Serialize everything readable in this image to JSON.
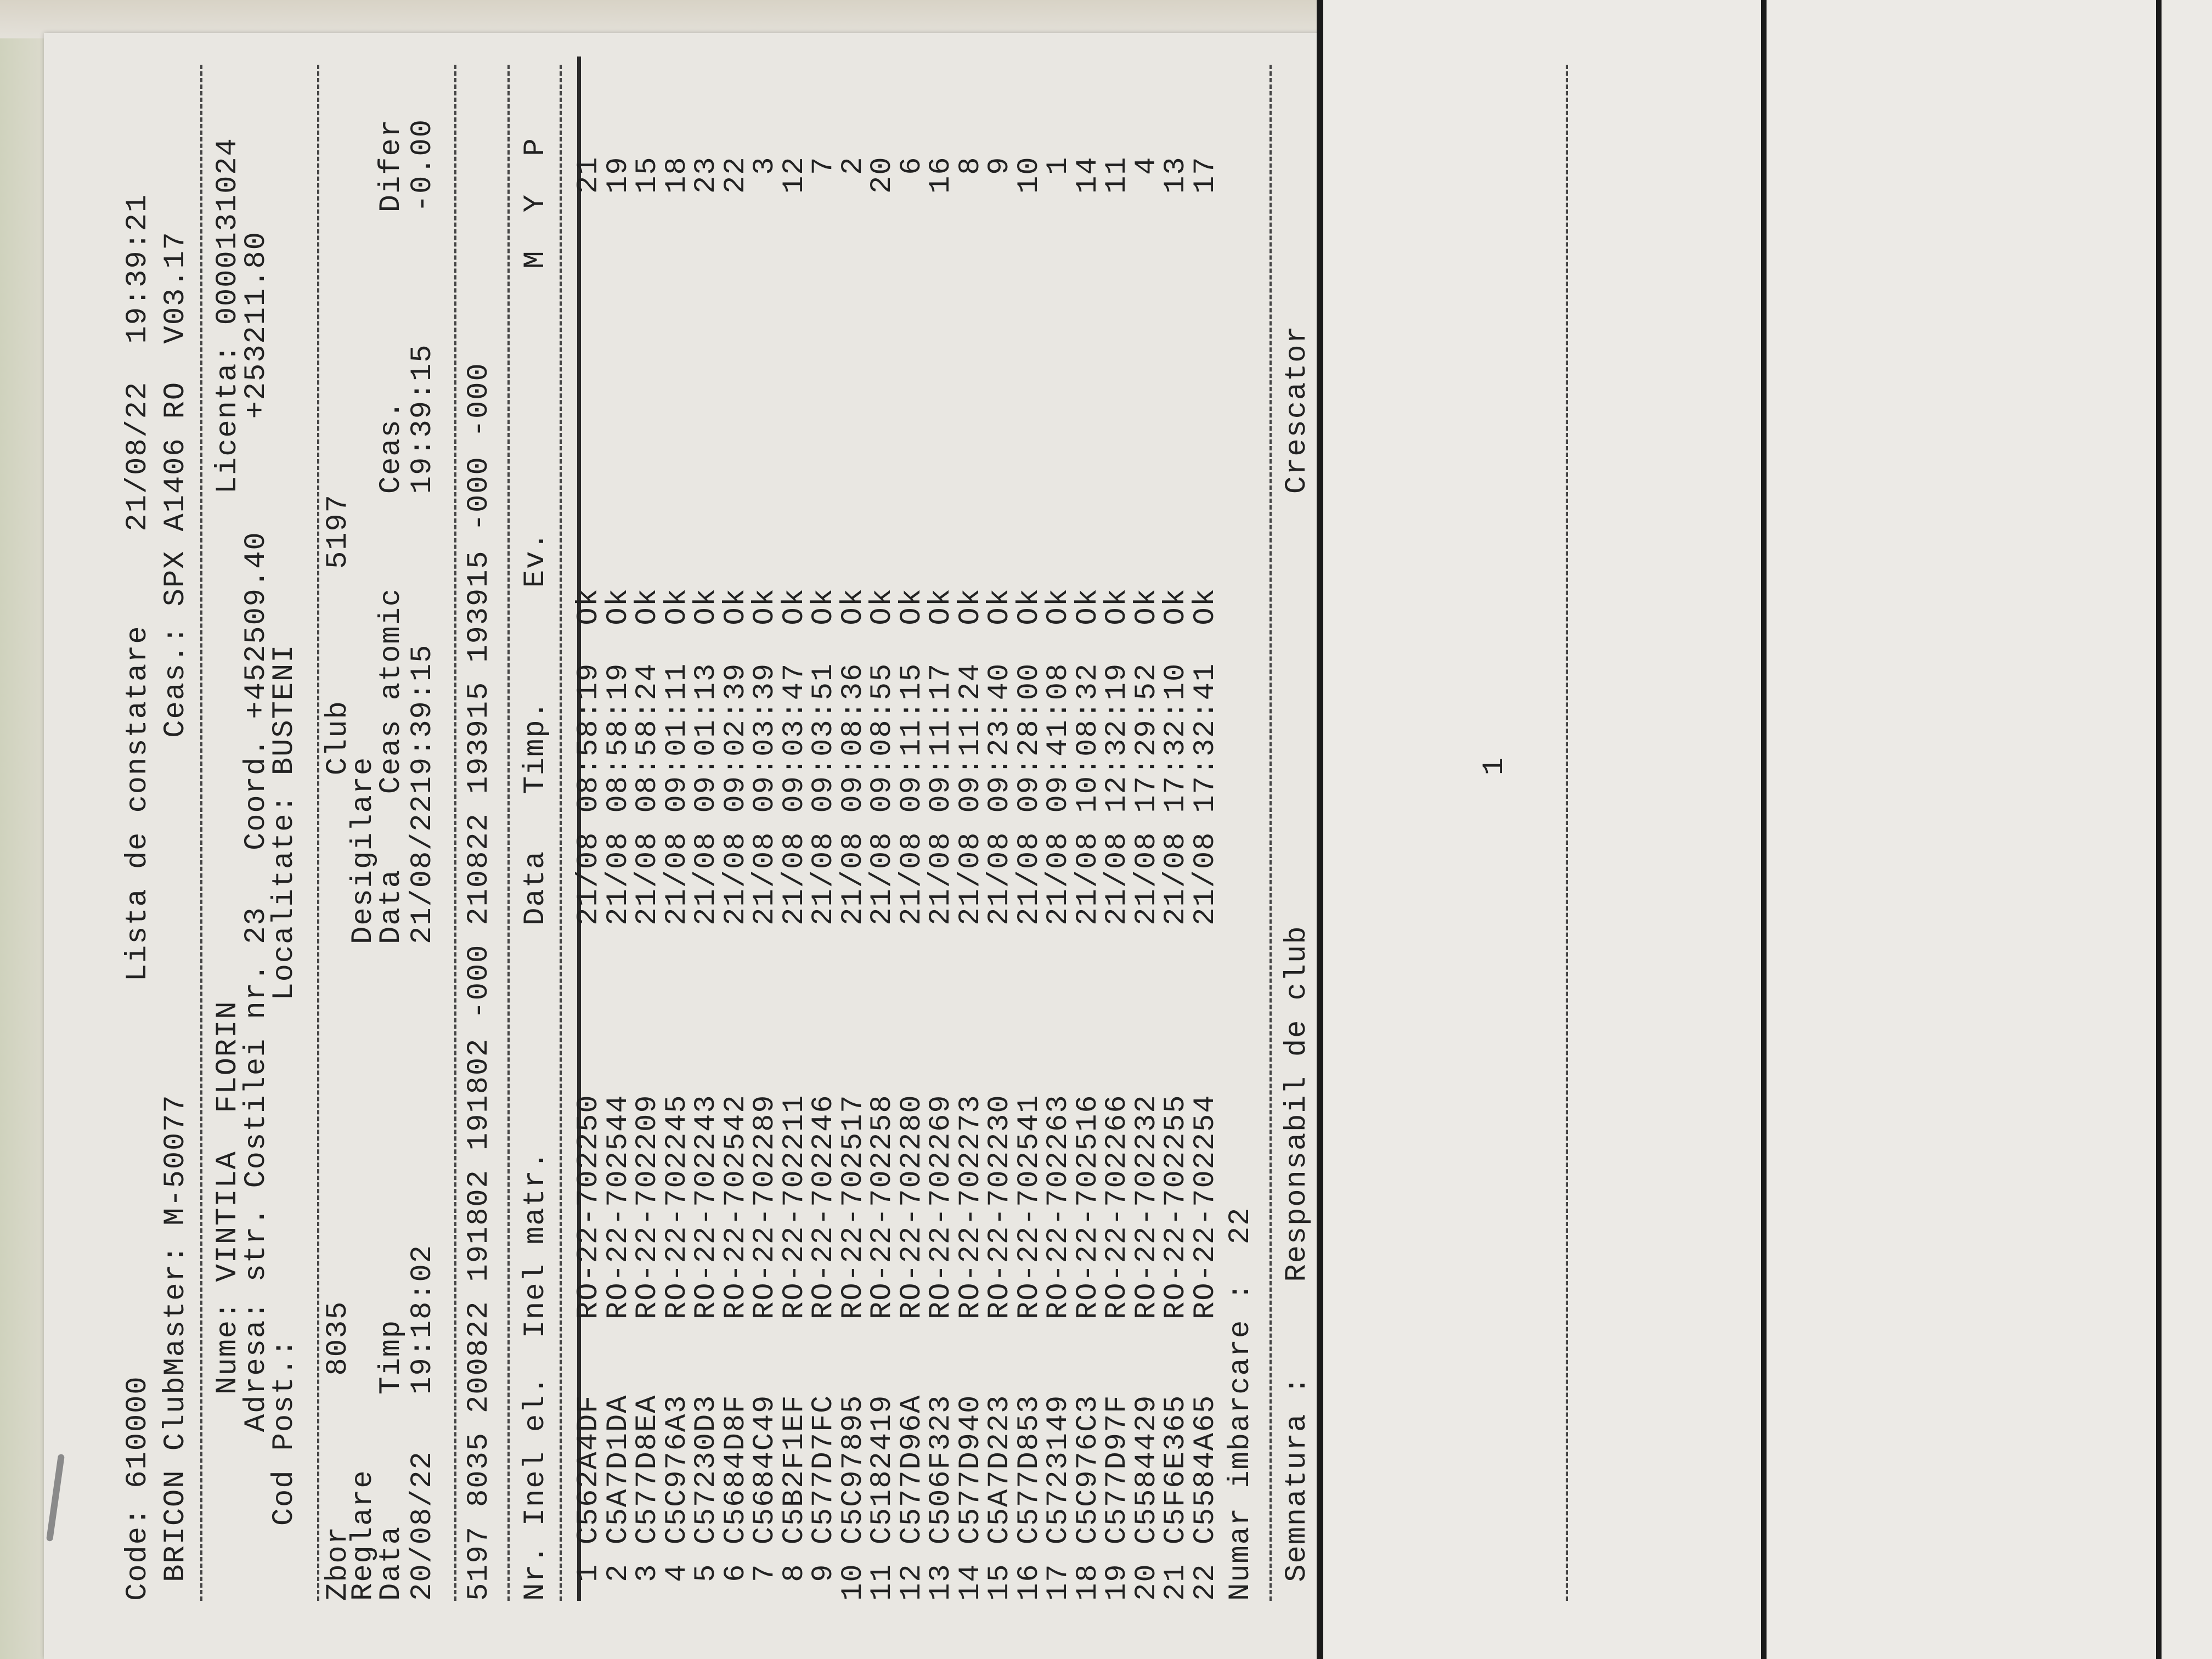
{
  "header": {
    "code": "Code: 610000",
    "title": "Lista de constatare",
    "datetime": "21/08/22  19:39:21",
    "club_master": "BRICON ClubMaster: M-50077",
    "ceas": "Ceas.: SPX A1406 RO  V03.17"
  },
  "owner": {
    "nume": "Nume: VINTILA  FLORIN",
    "licenta": "Licenta: 0000131024",
    "adresa": "Adresa: str. Costilei nr. 23",
    "coord": "Coord. +452509.40",
    "coord2": "+253211.80",
    "cod_post": "Cod Post.:",
    "localitate": "Localitate: BUSTENI"
  },
  "flight": {
    "zbor_label": "Zbor",
    "zbor": "8035",
    "club_label": "Club",
    "club": "5197",
    "reglare": "Reglare",
    "desigilare": "Desigilare",
    "h_data1": "Data",
    "h_timp": "Timp",
    "h_data2": "Data",
    "h_ceas_atomic": "Ceas atomic",
    "h_ceas": "Ceas.",
    "h_difer": "Difer",
    "v_data1": "20/08/22",
    "v_timp": "19:18:02",
    "v_data2": "21/08/22",
    "v_ceas_atomic": "19:39:15",
    "v_ceas": "19:39:15",
    "v_difer": "-0.00",
    "summary": "5197 8035 200822 191802 191802 -000 210822 193915 193915 -000 -000"
  },
  "table": {
    "h_nr": "Nr.",
    "h_inel": "Inel el.  Inel matr.",
    "h_data": "Data",
    "h_timp": "Timp.",
    "h_ev": "Ev.",
    "h_myp": "M  Y  P",
    "rows": [
      {
        "nr": "1",
        "inel": "C562A4DF",
        "matr": "RO-22-702250",
        "data": "21/08",
        "timp": "08:58:19",
        "ev": "Ok",
        "p": "21"
      },
      {
        "nr": "2",
        "inel": "C5A7D1DA",
        "matr": "RO-22-702544",
        "data": "21/08",
        "timp": "08:58:19",
        "ev": "Ok",
        "p": "19"
      },
      {
        "nr": "3",
        "inel": "C577D8EA",
        "matr": "RO-22-702209",
        "data": "21/08",
        "timp": "08:58:24",
        "ev": "Ok",
        "p": "15"
      },
      {
        "nr": "4",
        "inel": "C5C976A3",
        "matr": "RO-22-702245",
        "data": "21/08",
        "timp": "09:01:11",
        "ev": "Ok",
        "p": "18"
      },
      {
        "nr": "5",
        "inel": "C57230D3",
        "matr": "RO-22-702243",
        "data": "21/08",
        "timp": "09:01:13",
        "ev": "Ok",
        "p": "23"
      },
      {
        "nr": "6",
        "inel": "C5684D8F",
        "matr": "RO-22-702542",
        "data": "21/08",
        "timp": "09:02:39",
        "ev": "Ok",
        "p": "22"
      },
      {
        "nr": "7",
        "inel": "C5684C49",
        "matr": "RO-22-702289",
        "data": "21/08",
        "timp": "09:03:39",
        "ev": "Ok",
        "p": "3"
      },
      {
        "nr": "8",
        "inel": "C5B2F1EF",
        "matr": "RO-22-702211",
        "data": "21/08",
        "timp": "09:03:47",
        "ev": "Ok",
        "p": "12"
      },
      {
        "nr": "9",
        "inel": "C577D7FC",
        "matr": "RO-22-702246",
        "data": "21/08",
        "timp": "09:03:51",
        "ev": "Ok",
        "p": "7"
      },
      {
        "nr": "10",
        "inel": "C5C97895",
        "matr": "RO-22-702517",
        "data": "21/08",
        "timp": "09:08:36",
        "ev": "Ok",
        "p": "2"
      },
      {
        "nr": "11",
        "inel": "C5182419",
        "matr": "RO-22-702258",
        "data": "21/08",
        "timp": "09:08:55",
        "ev": "Ok",
        "p": "20"
      },
      {
        "nr": "12",
        "inel": "C577D96A",
        "matr": "RO-22-702280",
        "data": "21/08",
        "timp": "09:11:15",
        "ev": "Ok",
        "p": "6"
      },
      {
        "nr": "13",
        "inel": "C506F323",
        "matr": "RO-22-702269",
        "data": "21/08",
        "timp": "09:11:17",
        "ev": "Ok",
        "p": "16"
      },
      {
        "nr": "14",
        "inel": "C577D940",
        "matr": "RO-22-702273",
        "data": "21/08",
        "timp": "09:11:24",
        "ev": "Ok",
        "p": "8"
      },
      {
        "nr": "15",
        "inel": "C5A7D223",
        "matr": "RO-22-702230",
        "data": "21/08",
        "timp": "09:23:40",
        "ev": "Ok",
        "p": "9"
      },
      {
        "nr": "16",
        "inel": "C577D853",
        "matr": "RO-22-702541",
        "data": "21/08",
        "timp": "09:28:00",
        "ev": "Ok",
        "p": "10"
      },
      {
        "nr": "17",
        "inel": "C5723149",
        "matr": "RO-22-702263",
        "data": "21/08",
        "timp": "09:41:08",
        "ev": "Ok",
        "p": "1"
      },
      {
        "nr": "18",
        "inel": "C5C976C3",
        "matr": "RO-22-702516",
        "data": "21/08",
        "timp": "10:08:32",
        "ev": "Ok",
        "p": "14"
      },
      {
        "nr": "19",
        "inel": "C577D97F",
        "matr": "RO-22-702266",
        "data": "21/08",
        "timp": "12:32:19",
        "ev": "Ok",
        "p": "11"
      },
      {
        "nr": "20",
        "inel": "C5584429",
        "matr": "RO-22-702232",
        "data": "21/08",
        "timp": "17:29:52",
        "ev": "Ok",
        "p": "4"
      },
      {
        "nr": "21",
        "inel": "C5F6E365",
        "matr": "RO-22-702255",
        "data": "21/08",
        "timp": "17:32:10",
        "ev": "Ok",
        "p": "13"
      },
      {
        "nr": "22",
        "inel": "C5584A65",
        "matr": "RO-22-702254",
        "data": "21/08",
        "timp": "17:32:41",
        "ev": "Ok",
        "p": "17"
      }
    ]
  },
  "footer": {
    "numar_label": "Numar imbarcare :",
    "numar": "22",
    "semnatura": "Semnatura :",
    "responsabil": "Responsabil de club",
    "crescator": "Crescator",
    "page": "1"
  }
}
